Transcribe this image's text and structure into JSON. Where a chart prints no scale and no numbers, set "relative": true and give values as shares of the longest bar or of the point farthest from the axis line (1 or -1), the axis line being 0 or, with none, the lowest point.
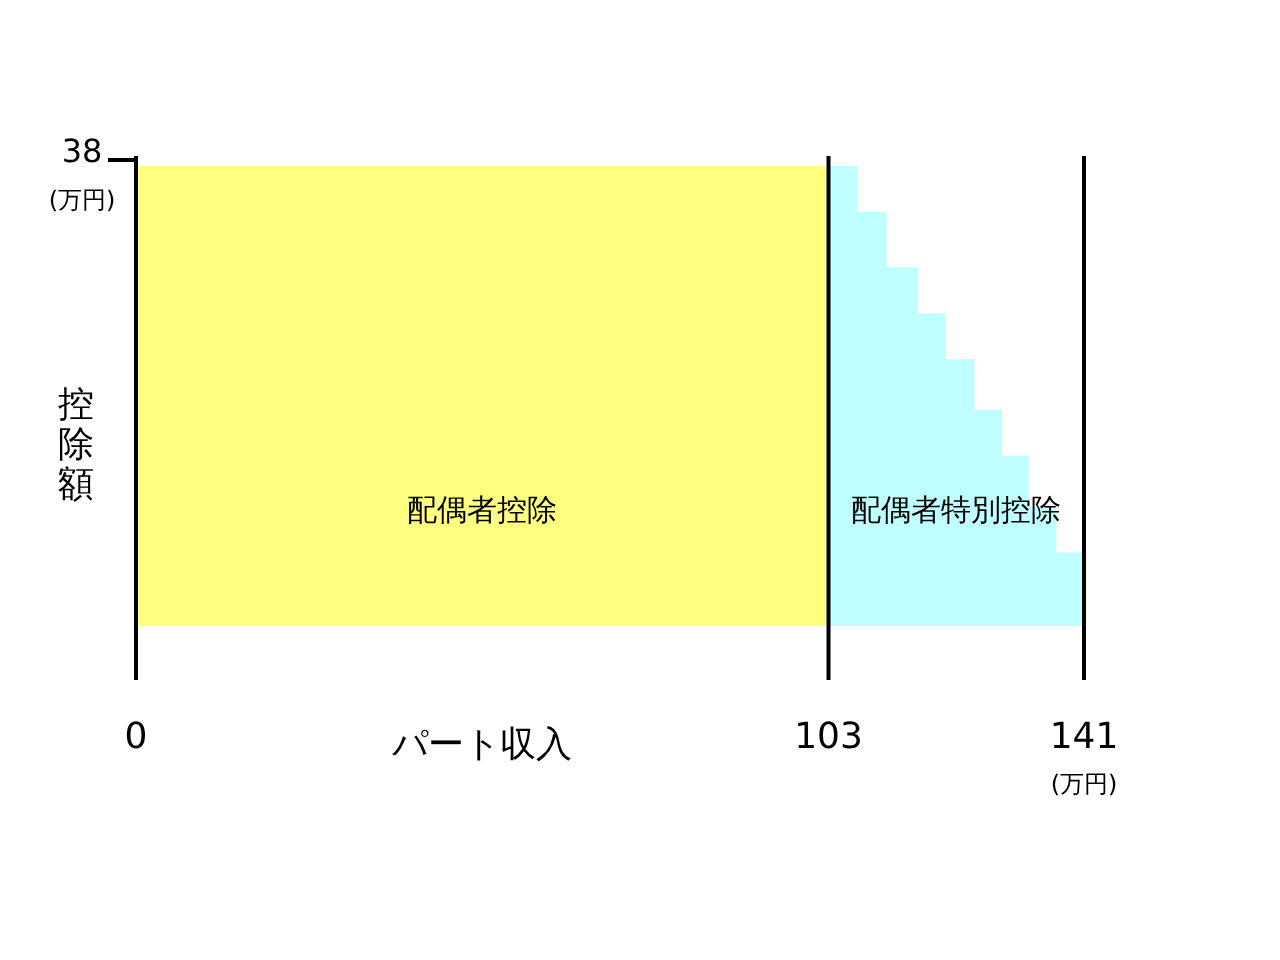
{
  "chart_data": {
    "type": "area",
    "relative": true,
    "xlabel": "パート収入",
    "ylabel": "控除額",
    "xlim": [
      0,
      141
    ],
    "xticks": [
      0,
      103,
      141
    ],
    "grid": "x",
    "legend": false,
    "series": [
      {
        "name": "配偶者控除",
        "color": "#ffff80",
        "x": [
          0,
          103
        ],
        "values": [
          1,
          1
        ]
      },
      {
        "name": "配偶者特別控除",
        "color": "#c0ffff",
        "x": [
          103,
          107.3,
          107.3,
          111.6,
          111.6,
          116.3,
          116.3,
          120.4,
          120.4,
          124.7,
          124.7,
          128.8,
          128.8,
          132.8,
          132.8,
          136.9,
          136.9,
          141
        ],
        "values": [
          1,
          1,
          0.9,
          0.9,
          0.78,
          0.78,
          0.68,
          0.68,
          0.58,
          0.58,
          0.47,
          0.47,
          0.37,
          0.37,
          0.26,
          0.26,
          0.16,
          0.16
        ]
      }
    ],
    "annotations": [
      {
        "text": "38",
        "x": 0,
        "y": 1
      },
      "(万円)",
      "(万円)"
    ]
  }
}
